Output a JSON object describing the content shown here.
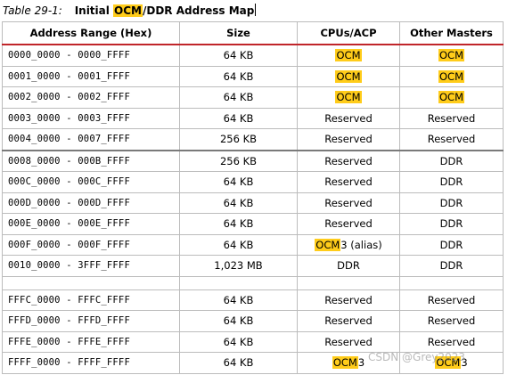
{
  "caption": {
    "label": "Table 29-1:",
    "title_before": "Initial ",
    "title_highlight": "OCM",
    "title_after": "/DDR Address Map"
  },
  "columns": [
    "Address Range (Hex)",
    "Size",
    "CPUs/ACP",
    "Other Masters"
  ],
  "rows": [
    {
      "start": "0000_0000",
      "end": "0000_FFFF",
      "size": "64 KB",
      "cpu": "OCM",
      "cpu_hl": true,
      "cpu_suffix": "",
      "other": "OCM",
      "other_hl": true
    },
    {
      "start": "0001_0000",
      "end": "0001_FFFF",
      "size": "64 KB",
      "cpu": "OCM",
      "cpu_hl": true,
      "cpu_suffix": "",
      "other": "OCM",
      "other_hl": true
    },
    {
      "start": "0002_0000",
      "end": "0002_FFFF",
      "size": "64 KB",
      "cpu": "OCM",
      "cpu_hl": true,
      "cpu_suffix": "",
      "other": "OCM",
      "other_hl": true
    },
    {
      "start": "0003_0000",
      "end": "0003_FFFF",
      "size": "64 KB",
      "cpu": "Reserved",
      "cpu_hl": false,
      "cpu_suffix": "",
      "other": "Reserved",
      "other_hl": false
    },
    {
      "start": "0004_0000",
      "end": "0007_FFFF",
      "size": "256 KB",
      "cpu": "Reserved",
      "cpu_hl": false,
      "cpu_suffix": "",
      "other": "Reserved",
      "other_hl": false
    },
    {
      "start": "0008_0000",
      "end": "000B_FFFF",
      "size": "256 KB",
      "cpu": "Reserved",
      "cpu_hl": false,
      "cpu_suffix": "",
      "other": "DDR",
      "other_hl": false
    },
    {
      "start": "000C_0000",
      "end": "000C_FFFF",
      "size": "64 KB",
      "cpu": "Reserved",
      "cpu_hl": false,
      "cpu_suffix": "",
      "other": "DDR",
      "other_hl": false
    },
    {
      "start": "000D_0000",
      "end": "000D_FFFF",
      "size": "64 KB",
      "cpu": "Reserved",
      "cpu_hl": false,
      "cpu_suffix": "",
      "other": "DDR",
      "other_hl": false
    },
    {
      "start": "000E_0000",
      "end": "000E_FFFF",
      "size": "64 KB",
      "cpu": "Reserved",
      "cpu_hl": false,
      "cpu_suffix": "",
      "other": "DDR",
      "other_hl": false
    },
    {
      "start": "000F_0000",
      "end": "000F_FFFF",
      "size": "64 KB",
      "cpu": "OCM",
      "cpu_hl": true,
      "cpu_suffix": "3 (alias)",
      "other": "DDR",
      "other_hl": false
    },
    {
      "start": "0010_0000",
      "end": "3FFF_FFFF",
      "size": "1,023 MB",
      "cpu": "DDR",
      "cpu_hl": false,
      "cpu_suffix": "",
      "other": "DDR",
      "other_hl": false
    },
    {
      "spacer": true
    },
    {
      "start": "FFFC_0000",
      "end": "FFFC_FFFF",
      "size": "64 KB",
      "cpu": "Reserved",
      "cpu_hl": false,
      "cpu_suffix": "",
      "other": "Reserved",
      "other_hl": false
    },
    {
      "start": "FFFD_0000",
      "end": "FFFD_FFFF",
      "size": "64 KB",
      "cpu": "Reserved",
      "cpu_hl": false,
      "cpu_suffix": "",
      "other": "Reserved",
      "other_hl": false
    },
    {
      "start": "FFFE_0000",
      "end": "FFFE_FFFF",
      "size": "64 KB",
      "cpu": "Reserved",
      "cpu_hl": false,
      "cpu_suffix": "",
      "other": "Reserved",
      "other_hl": false
    },
    {
      "start": "FFFF_0000",
      "end": "FFFF_FFFF",
      "size": "64 KB",
      "cpu": "OCM",
      "cpu_hl": true,
      "cpu_suffix": "3",
      "other": "OCM",
      "other_hl": true,
      "other_suffix": "3"
    }
  ],
  "watermark": "CSDN @Grey2023",
  "colors": {
    "highlight": "#ffcc1a",
    "header_rule": "#c0252a",
    "border": "#bcbcbc"
  }
}
